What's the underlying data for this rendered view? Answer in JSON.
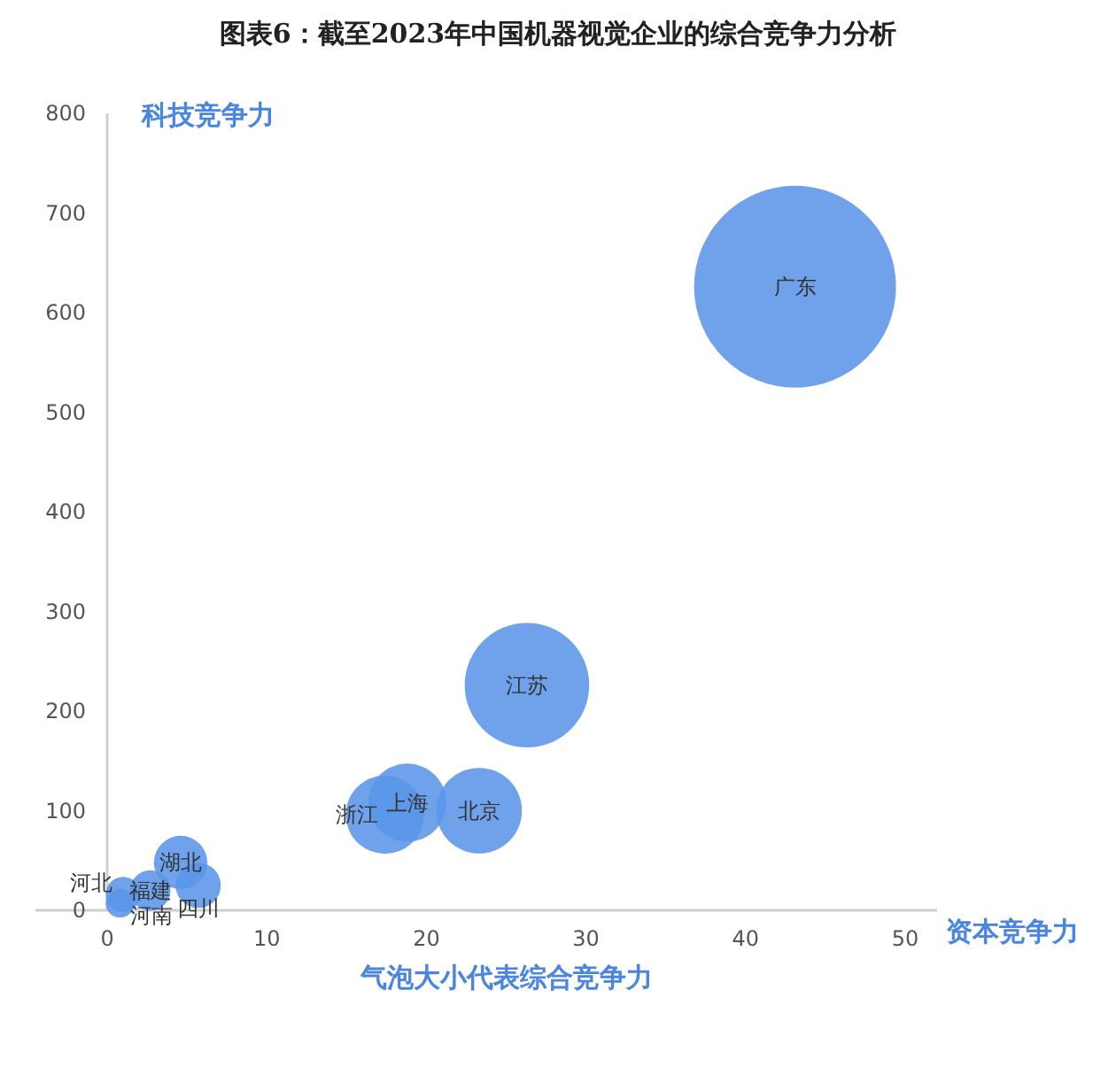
{
  "chart_data": {
    "type": "bubble",
    "title": "图表6：截至2023年中国机器视觉企业的综合竞争力分析",
    "xlabel": "资本竞争力",
    "ylabel": "科技竞争力",
    "annotations": [
      "气泡大小代表综合竞争力"
    ],
    "color": "#5b95e8",
    "series": [
      {
        "name": "广东",
        "x": [
          43.1
        ],
        "values": [
          626
        ],
        "sizes": [
          1
        ]
      },
      {
        "name": "江苏",
        "x": [
          26.3
        ],
        "values": [
          226
        ],
        "sizes": [
          0.38
        ]
      },
      {
        "name": "北京",
        "x": [
          23.3
        ],
        "values": [
          100
        ],
        "sizes": [
          0.18
        ]
      },
      {
        "name": "上海",
        "x": [
          18.8
        ],
        "values": [
          108
        ],
        "sizes": [
          0.15
        ]
      },
      {
        "name": "浙江",
        "x": [
          17.4
        ],
        "values": [
          96
        ],
        "sizes": [
          0.15
        ]
      },
      {
        "name": "湖北",
        "x": [
          4.6
        ],
        "values": [
          48
        ],
        "sizes": [
          0.07
        ]
      },
      {
        "name": "四川",
        "x": [
          5.7
        ],
        "values": [
          25
        ],
        "sizes": [
          0.05
        ]
      },
      {
        "name": "福建",
        "x": [
          2.7
        ],
        "values": [
          20
        ],
        "sizes": [
          0.04
        ]
      },
      {
        "name": "河南",
        "x": [
          1.0
        ],
        "values": [
          16
        ],
        "sizes": [
          0.03
        ]
      },
      {
        "name": "河北",
        "x": [
          0.8
        ],
        "values": [
          7
        ],
        "sizes": [
          0.02
        ]
      }
    ],
    "xlim": [
      -4.5,
      52
    ],
    "xticks": [
      0,
      10,
      20,
      30,
      40,
      50
    ],
    "ylim": [
      0,
      800
    ],
    "yticks": [
      0,
      100,
      200,
      300,
      400,
      500,
      600,
      700,
      800
    ]
  }
}
